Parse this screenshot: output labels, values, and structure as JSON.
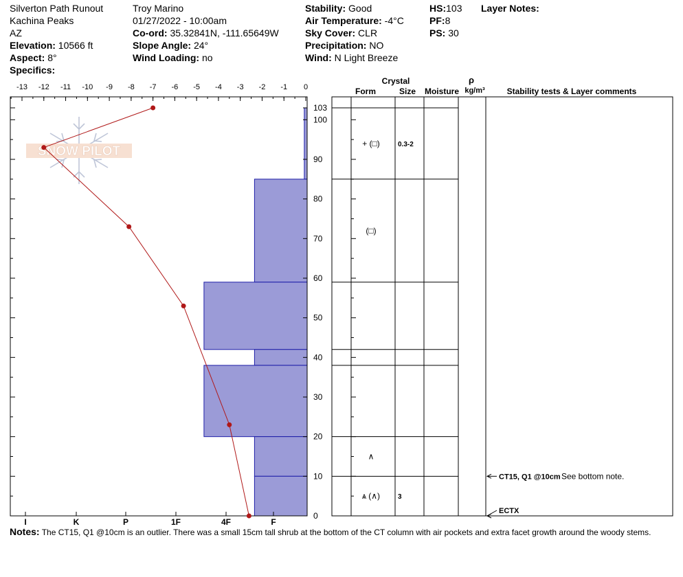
{
  "header": {
    "col1": [
      "Silverton Path Runout",
      "Kachina Peaks",
      "AZ"
    ],
    "elevation": {
      "label": "Elevation:",
      "value": "10566 ft"
    },
    "aspect": {
      "label": "Aspect:",
      "value": "8°"
    },
    "specifics": {
      "label": "Specifics:",
      "value": ""
    },
    "observer": "Troy Marino",
    "datetime": "01/27/2022 - 10:00am",
    "coord": {
      "label": "Co-ord:",
      "value": "35.32841N, -111.65649W"
    },
    "slope": {
      "label": "Slope Angle:",
      "value": "24°"
    },
    "wind_loading": {
      "label": "Wind Loading:",
      "value": "no"
    },
    "stability": {
      "label": "Stability:",
      "value": "Good"
    },
    "air_temp": {
      "label": "Air Temperature:",
      "value": "-4°C"
    },
    "sky": {
      "label": "Sky Cover:",
      "value": "CLR"
    },
    "precip": {
      "label": "Precipitation:",
      "value": "NO"
    },
    "wind": {
      "label": "Wind:",
      "value": " N Light Breeze"
    },
    "hs": {
      "label": "HS:",
      "value": "103"
    },
    "pf": {
      "label": "PF:",
      "value": "8"
    },
    "ps": {
      "label": "PS:",
      "value": "30"
    },
    "layer_notes": {
      "label": "Layer Notes:",
      "value": ""
    }
  },
  "watermark": "SNOW PILOT",
  "table_headers": {
    "crystal": "Crystal",
    "form": "Form",
    "size": "Size",
    "moisture": "Moisture",
    "rho": "ρ",
    "density_unit": "kg/m³",
    "stability": "Stability tests & Layer comments"
  },
  "notes": {
    "label": "Notes:",
    "text": "The CT15, Q1 @10cm is an outlier. There was a small 15cm tall shrub at the bottom of the CT column with air pockets and extra facet growth around the woody stems."
  },
  "chart_data": {
    "type": "snow-profile",
    "temperature_axis": {
      "ticks": [
        "-13",
        "-12",
        "-11",
        "-10",
        "-9",
        "-8",
        "-7",
        "-6",
        "-5",
        "-4",
        "-3",
        "-2",
        "-1",
        "0"
      ],
      "range": [
        -14.5,
        0
      ]
    },
    "hardness_axis": {
      "labels": [
        "I",
        "K",
        "P",
        "1F",
        "4F",
        "F"
      ],
      "values": [
        1,
        2,
        3,
        4,
        5,
        6
      ]
    },
    "height_axis": {
      "range": [
        0,
        103
      ],
      "labels": [
        "103",
        "100",
        "90",
        "80",
        "70",
        "60",
        "50",
        "40",
        "30",
        "20",
        "10",
        "0"
      ],
      "ticks": [
        103,
        100,
        90,
        80,
        70,
        60,
        50,
        40,
        30,
        20,
        10,
        0
      ]
    },
    "layers": [
      {
        "top": 103,
        "bottom": 85,
        "hardness": 6.65,
        "form": "+ (□)",
        "size": "0.3-2"
      },
      {
        "top": 85,
        "bottom": 59,
        "hardness": 5.6,
        "form": "(□)",
        "size": ""
      },
      {
        "top": 59,
        "bottom": 42,
        "hardness": 4.56,
        "form": "",
        "size": ""
      },
      {
        "top": 42,
        "bottom": 38,
        "hardness": 5.6,
        "form": "",
        "size": ""
      },
      {
        "top": 38,
        "bottom": 20,
        "hardness": 4.56,
        "form": "",
        "size": ""
      },
      {
        "top": 20,
        "bottom": 10,
        "hardness": 5.6,
        "form": "∧",
        "size": ""
      },
      {
        "top": 10,
        "bottom": 0,
        "hardness": 5.6,
        "form": "ѧ (∧)",
        "size": "3"
      }
    ],
    "temperature_profile": [
      {
        "height": 103,
        "temp": -7
      },
      {
        "height": 93,
        "temp": -12
      },
      {
        "height": 73,
        "temp": -8.1
      },
      {
        "height": 53,
        "temp": -5.6
      },
      {
        "height": 23,
        "temp": -3.5
      },
      {
        "height": 0,
        "temp": -2.6
      }
    ],
    "stability_tests": [
      {
        "height": 10,
        "label": "CT15, Q1 @10cm",
        "comment": "See bottom note."
      },
      {
        "height": 0,
        "label": "ECTX",
        "comment": ""
      }
    ]
  }
}
